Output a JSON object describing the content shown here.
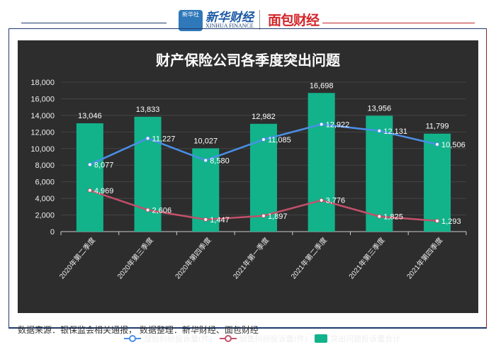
{
  "header": {
    "xinhua_icon_text": "新华社",
    "xinhua_name": "新华财经",
    "xinhua_en": "XINHUA FINANCE",
    "mianbao": "面包财经"
  },
  "footer": {
    "source": "数据来源：银保监会相关通报， 数据整理：新华财经、面包财经"
  },
  "chart_data": {
    "type": "bar+line",
    "title": "财产保险公司各季度突出问题",
    "categories": [
      "2020年第二季度",
      "2020年第三季度",
      "2020年第四季度",
      "2021年第一季度",
      "2021年第二季度",
      "2021年第三季度",
      "2021年第四季度"
    ],
    "series": [
      {
        "name": "理赔纠纷投诉量(件)",
        "type": "line",
        "color": "#4a8fe8",
        "values": [
          8077,
          11227,
          8580,
          11085,
          12922,
          12131,
          10506
        ],
        "labels": [
          "8,077",
          "11,227",
          "8,580",
          "11,085",
          "12,922",
          "12,131",
          "10,506"
        ]
      },
      {
        "name": "销售纠纷投诉量(件)",
        "type": "line",
        "color": "#c4506a",
        "values": [
          4969,
          2606,
          1447,
          1897,
          3776,
          1825,
          1293
        ],
        "labels": [
          "4,969",
          "2,606",
          "1,447",
          "1,897",
          "3,776",
          "1,825",
          "1,293"
        ]
      },
      {
        "name": "突出问题投诉量合计",
        "type": "bar",
        "color": "#12b38a",
        "values": [
          13046,
          13833,
          10027,
          12982,
          16698,
          13956,
          11799
        ],
        "labels": [
          "13,046",
          "13,833",
          "10,027",
          "12,982",
          "16,698",
          "13,956",
          "11,799"
        ]
      }
    ],
    "ylim": [
      0,
      18000
    ],
    "yticks": [
      "0",
      "2,000",
      "4,000",
      "6,000",
      "8,000",
      "10,000",
      "12,000",
      "14,000",
      "16,000",
      "18,000"
    ],
    "grid": true,
    "legend": "bottom"
  }
}
